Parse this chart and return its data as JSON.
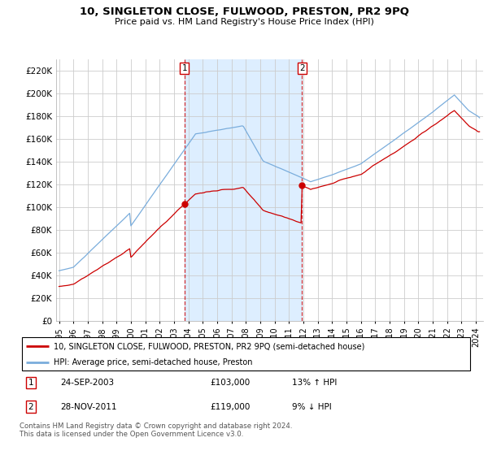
{
  "title": "10, SINGLETON CLOSE, FULWOOD, PRESTON, PR2 9PQ",
  "subtitle": "Price paid vs. HM Land Registry's House Price Index (HPI)",
  "ylabel_ticks": [
    0,
    20000,
    40000,
    60000,
    80000,
    100000,
    120000,
    140000,
    160000,
    180000,
    200000,
    220000
  ],
  "ylim": [
    0,
    230000
  ],
  "sale1_date_x": 2003.73,
  "sale1_price": 103000,
  "sale2_date_x": 2011.91,
  "sale2_price": 119000,
  "vline1_x": 2003.73,
  "vline2_x": 2011.91,
  "hpi_color": "#7aaddc",
  "price_color": "#cc0000",
  "shade_color": "#ddeeff",
  "legend_label1": "10, SINGLETON CLOSE, FULWOOD, PRESTON, PR2 9PQ (semi-detached house)",
  "legend_label2": "HPI: Average price, semi-detached house, Preston",
  "footer": "Contains HM Land Registry data © Crown copyright and database right 2024.\nThis data is licensed under the Open Government Licence v3.0.",
  "xlim_start": 1994.8,
  "xlim_end": 2024.5,
  "xtick_years": [
    1995,
    1996,
    1997,
    1998,
    1999,
    2000,
    2001,
    2002,
    2003,
    2004,
    2005,
    2006,
    2007,
    2008,
    2009,
    2010,
    2011,
    2012,
    2013,
    2014,
    2015,
    2016,
    2017,
    2018,
    2019,
    2020,
    2021,
    2022,
    2023,
    2024
  ]
}
